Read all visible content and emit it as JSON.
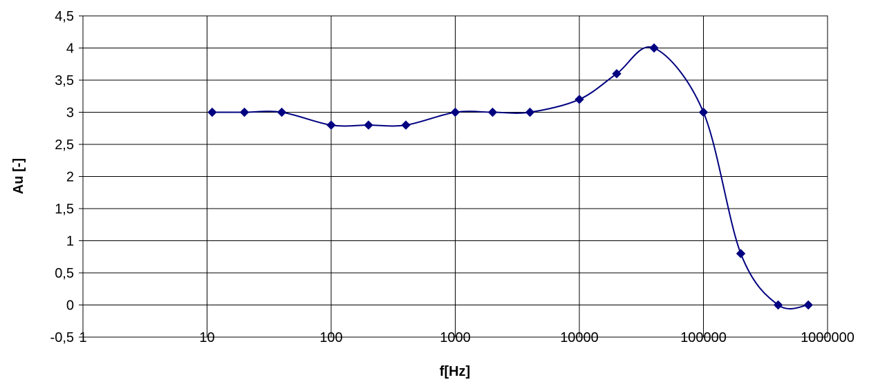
{
  "chart_data": {
    "type": "line",
    "title": "",
    "xlabel": "f[Hz]",
    "ylabel": "Au [-]",
    "x_scale": "log",
    "xlim": [
      1,
      1000000
    ],
    "ylim": [
      -0.5,
      4.5
    ],
    "grid": true,
    "legend": "none",
    "smoothed": true,
    "marker": "diamond",
    "x_tick_labels": [
      "1",
      "10",
      "100",
      "1000",
      "10000",
      "100000",
      "1000000"
    ],
    "y_tick_labels": [
      "-0,5",
      "0",
      "0,5",
      "1",
      "1,5",
      "2",
      "2,5",
      "3",
      "3,5",
      "4",
      "4,5"
    ],
    "series": [
      {
        "color": "#000080",
        "x": [
          11,
          20,
          40,
          100,
          200,
          400,
          1000,
          2000,
          4000,
          10000,
          20000,
          40000,
          100000,
          200000,
          400000,
          700000
        ],
        "y": [
          3,
          3,
          3,
          2.8,
          2.8,
          2.8,
          3,
          3,
          3,
          3.2,
          3.6,
          4,
          3,
          0.8,
          0,
          0
        ]
      }
    ]
  }
}
